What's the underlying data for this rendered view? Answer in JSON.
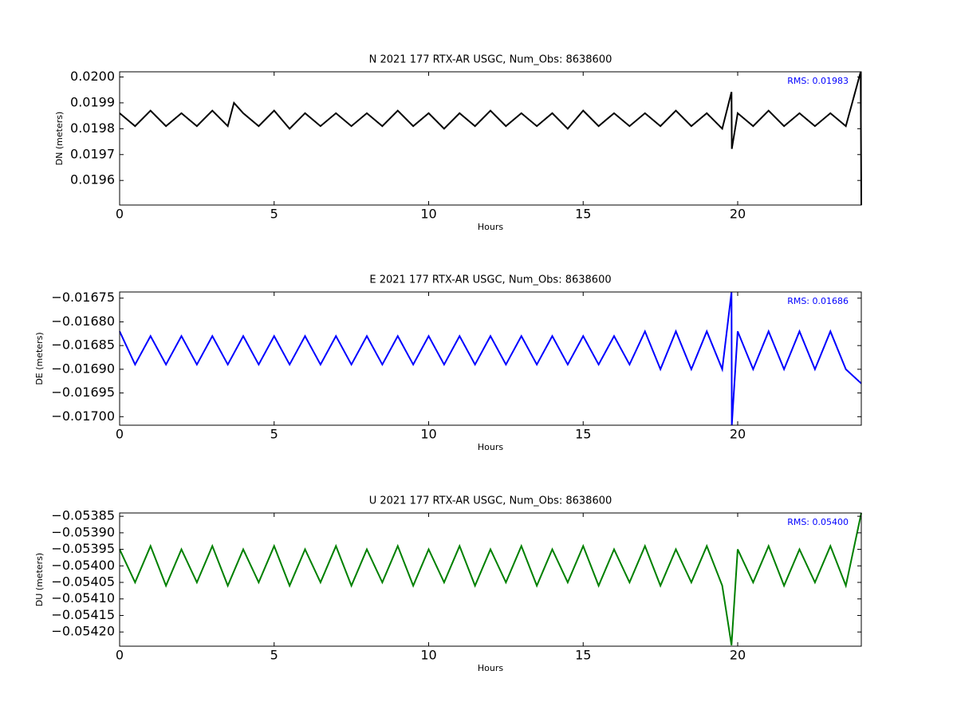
{
  "chart_data": [
    {
      "type": "line",
      "title": "N 2021 177 RTX-AR  USGC, Num_Obs: 8638600",
      "x_label": "Hours",
      "y_label": "DN (meters)",
      "annotation": "RMS:  0.01983",
      "annotation_color": "#0000ff",
      "xlim": [
        0,
        24
      ],
      "xticks": [
        0,
        5,
        10,
        15,
        20
      ],
      "ylim": [
        0.019505,
        0.02002
      ],
      "yticks": [
        {
          "value": 0.02,
          "label": "0.0200"
        },
        0.0199,
        0.0198,
        0.0197,
        0.0196
      ],
      "series": [
        {
          "color": "#000000",
          "x": [
            0,
            0.5,
            1,
            1.5,
            2,
            2.5,
            3,
            3.5,
            3.7,
            4,
            4.5,
            5,
            5.5,
            6,
            6.5,
            7,
            7.5,
            8,
            8.5,
            9,
            9.5,
            10,
            10.5,
            11,
            11.5,
            12,
            12.5,
            13,
            13.5,
            14,
            14.5,
            15,
            15.5,
            16,
            16.5,
            17,
            17.5,
            18,
            18.5,
            19,
            19.5,
            19.8,
            19.81,
            20,
            20.5,
            21,
            21.5,
            22,
            22.5,
            23,
            23.5,
            23.98,
            24
          ],
          "values": [
            0.01986,
            0.01981,
            0.01987,
            0.01981,
            0.01986,
            0.01981,
            0.01987,
            0.01981,
            0.0199,
            0.01986,
            0.01981,
            0.01987,
            0.0198,
            0.01986,
            0.01981,
            0.01986,
            0.01981,
            0.01986,
            0.01981,
            0.01987,
            0.01981,
            0.01986,
            0.0198,
            0.01986,
            0.01981,
            0.01987,
            0.01981,
            0.01986,
            0.01981,
            0.01986,
            0.0198,
            0.01987,
            0.01981,
            0.01986,
            0.01981,
            0.01986,
            0.01981,
            0.01987,
            0.01981,
            0.01986,
            0.0198,
            0.019942,
            0.019722,
            0.01986,
            0.01981,
            0.01987,
            0.01981,
            0.01986,
            0.01981,
            0.01986,
            0.01981,
            0.02002,
            0.019505
          ]
        }
      ]
    },
    {
      "type": "line",
      "title": "E 2021 177 RTX-AR  USGC, Num_Obs: 8638600",
      "x_label": "Hours",
      "y_label": "DE (meters)",
      "annotation": "RMS:  0.01686",
      "annotation_color": "#0000ff",
      "xlim": [
        0,
        24
      ],
      "xticks": [
        0,
        5,
        10,
        15,
        20
      ],
      "ylim": [
        -0.017018,
        -0.016737
      ],
      "yticks": [
        {
          "value": -0.01675,
          "label": "−0.01675"
        },
        {
          "value": -0.0168,
          "label": "−0.01680"
        },
        {
          "value": -0.01685,
          "label": "−0.01685"
        },
        {
          "value": -0.0169,
          "label": "−0.01690"
        },
        {
          "value": -0.01695,
          "label": "−0.01695"
        },
        {
          "value": -0.017,
          "label": "−0.01700"
        }
      ],
      "series": [
        {
          "color": "#0000ff",
          "x": [
            0,
            0.5,
            1,
            1.5,
            2,
            2.5,
            3,
            3.5,
            4,
            4.5,
            5,
            5.5,
            6,
            6.5,
            7,
            7.5,
            8,
            8.5,
            9,
            9.5,
            10,
            10.5,
            11,
            11.5,
            12,
            12.5,
            13,
            13.5,
            14,
            14.5,
            15,
            15.5,
            16,
            16.5,
            17,
            17.5,
            18,
            18.5,
            19,
            19.5,
            19.8,
            19.81,
            20,
            20.5,
            21,
            21.5,
            22,
            22.5,
            23,
            23.5,
            24
          ],
          "values": [
            -0.01682,
            -0.01689,
            -0.01683,
            -0.01689,
            -0.01683,
            -0.01689,
            -0.01683,
            -0.01689,
            -0.01683,
            -0.01689,
            -0.01683,
            -0.01689,
            -0.01683,
            -0.01689,
            -0.01683,
            -0.01689,
            -0.01683,
            -0.01689,
            -0.01683,
            -0.01689,
            -0.01683,
            -0.01689,
            -0.01683,
            -0.01689,
            -0.01683,
            -0.01689,
            -0.01683,
            -0.01689,
            -0.01683,
            -0.01689,
            -0.01683,
            -0.01689,
            -0.01683,
            -0.01689,
            -0.01682,
            -0.0169,
            -0.01682,
            -0.0169,
            -0.01682,
            -0.0169,
            -0.016737,
            -0.017018,
            -0.01682,
            -0.0169,
            -0.01682,
            -0.0169,
            -0.01682,
            -0.0169,
            -0.01682,
            -0.0169,
            -0.01693
          ]
        }
      ]
    },
    {
      "type": "line",
      "title": "U 2021 177 RTX-AR  USGC, Num_Obs: 8638600",
      "x_label": "Hours",
      "y_label": "DU (meters)",
      "annotation": "RMS:  0.05400",
      "annotation_color": "#0000ff",
      "xlim": [
        0,
        24
      ],
      "xticks": [
        0,
        5,
        10,
        15,
        20
      ],
      "ylim": [
        -0.054243,
        -0.05384
      ],
      "yticks": [
        {
          "value": -0.05385,
          "label": "−0.05385"
        },
        {
          "value": -0.0539,
          "label": "−0.05390"
        },
        {
          "value": -0.05395,
          "label": "−0.05395"
        },
        {
          "value": -0.054,
          "label": "−0.05400"
        },
        {
          "value": -0.05405,
          "label": "−0.05405"
        },
        {
          "value": -0.0541,
          "label": "−0.05410"
        },
        {
          "value": -0.05415,
          "label": "−0.05415"
        },
        {
          "value": -0.0542,
          "label": "−0.05420"
        }
      ],
      "series": [
        {
          "color": "#008000",
          "x": [
            0,
            0.5,
            1,
            1.5,
            2,
            2.5,
            3,
            3.5,
            4,
            4.5,
            5,
            5.5,
            6,
            6.5,
            7,
            7.5,
            8,
            8.5,
            9,
            9.5,
            10,
            10.5,
            11,
            11.5,
            12,
            12.5,
            13,
            13.5,
            14,
            14.5,
            15,
            15.5,
            16,
            16.5,
            17,
            17.5,
            18,
            18.5,
            19,
            19.5,
            19.8,
            20,
            20.5,
            21,
            21.5,
            22,
            22.5,
            23,
            23.5,
            24
          ],
          "values": [
            -0.05395,
            -0.05405,
            -0.05394,
            -0.05406,
            -0.05395,
            -0.05405,
            -0.05394,
            -0.05406,
            -0.05395,
            -0.05405,
            -0.05394,
            -0.05406,
            -0.05395,
            -0.05405,
            -0.05394,
            -0.05406,
            -0.05395,
            -0.05405,
            -0.05394,
            -0.05406,
            -0.05395,
            -0.05405,
            -0.05394,
            -0.05406,
            -0.05395,
            -0.05405,
            -0.05394,
            -0.05406,
            -0.05395,
            -0.05405,
            -0.05394,
            -0.05406,
            -0.05395,
            -0.05405,
            -0.05394,
            -0.05406,
            -0.05395,
            -0.05405,
            -0.05394,
            -0.05406,
            -0.05424,
            -0.05395,
            -0.05405,
            -0.05394,
            -0.05406,
            -0.05395,
            -0.05405,
            -0.05394,
            -0.05406,
            -0.05384
          ]
        }
      ]
    }
  ]
}
